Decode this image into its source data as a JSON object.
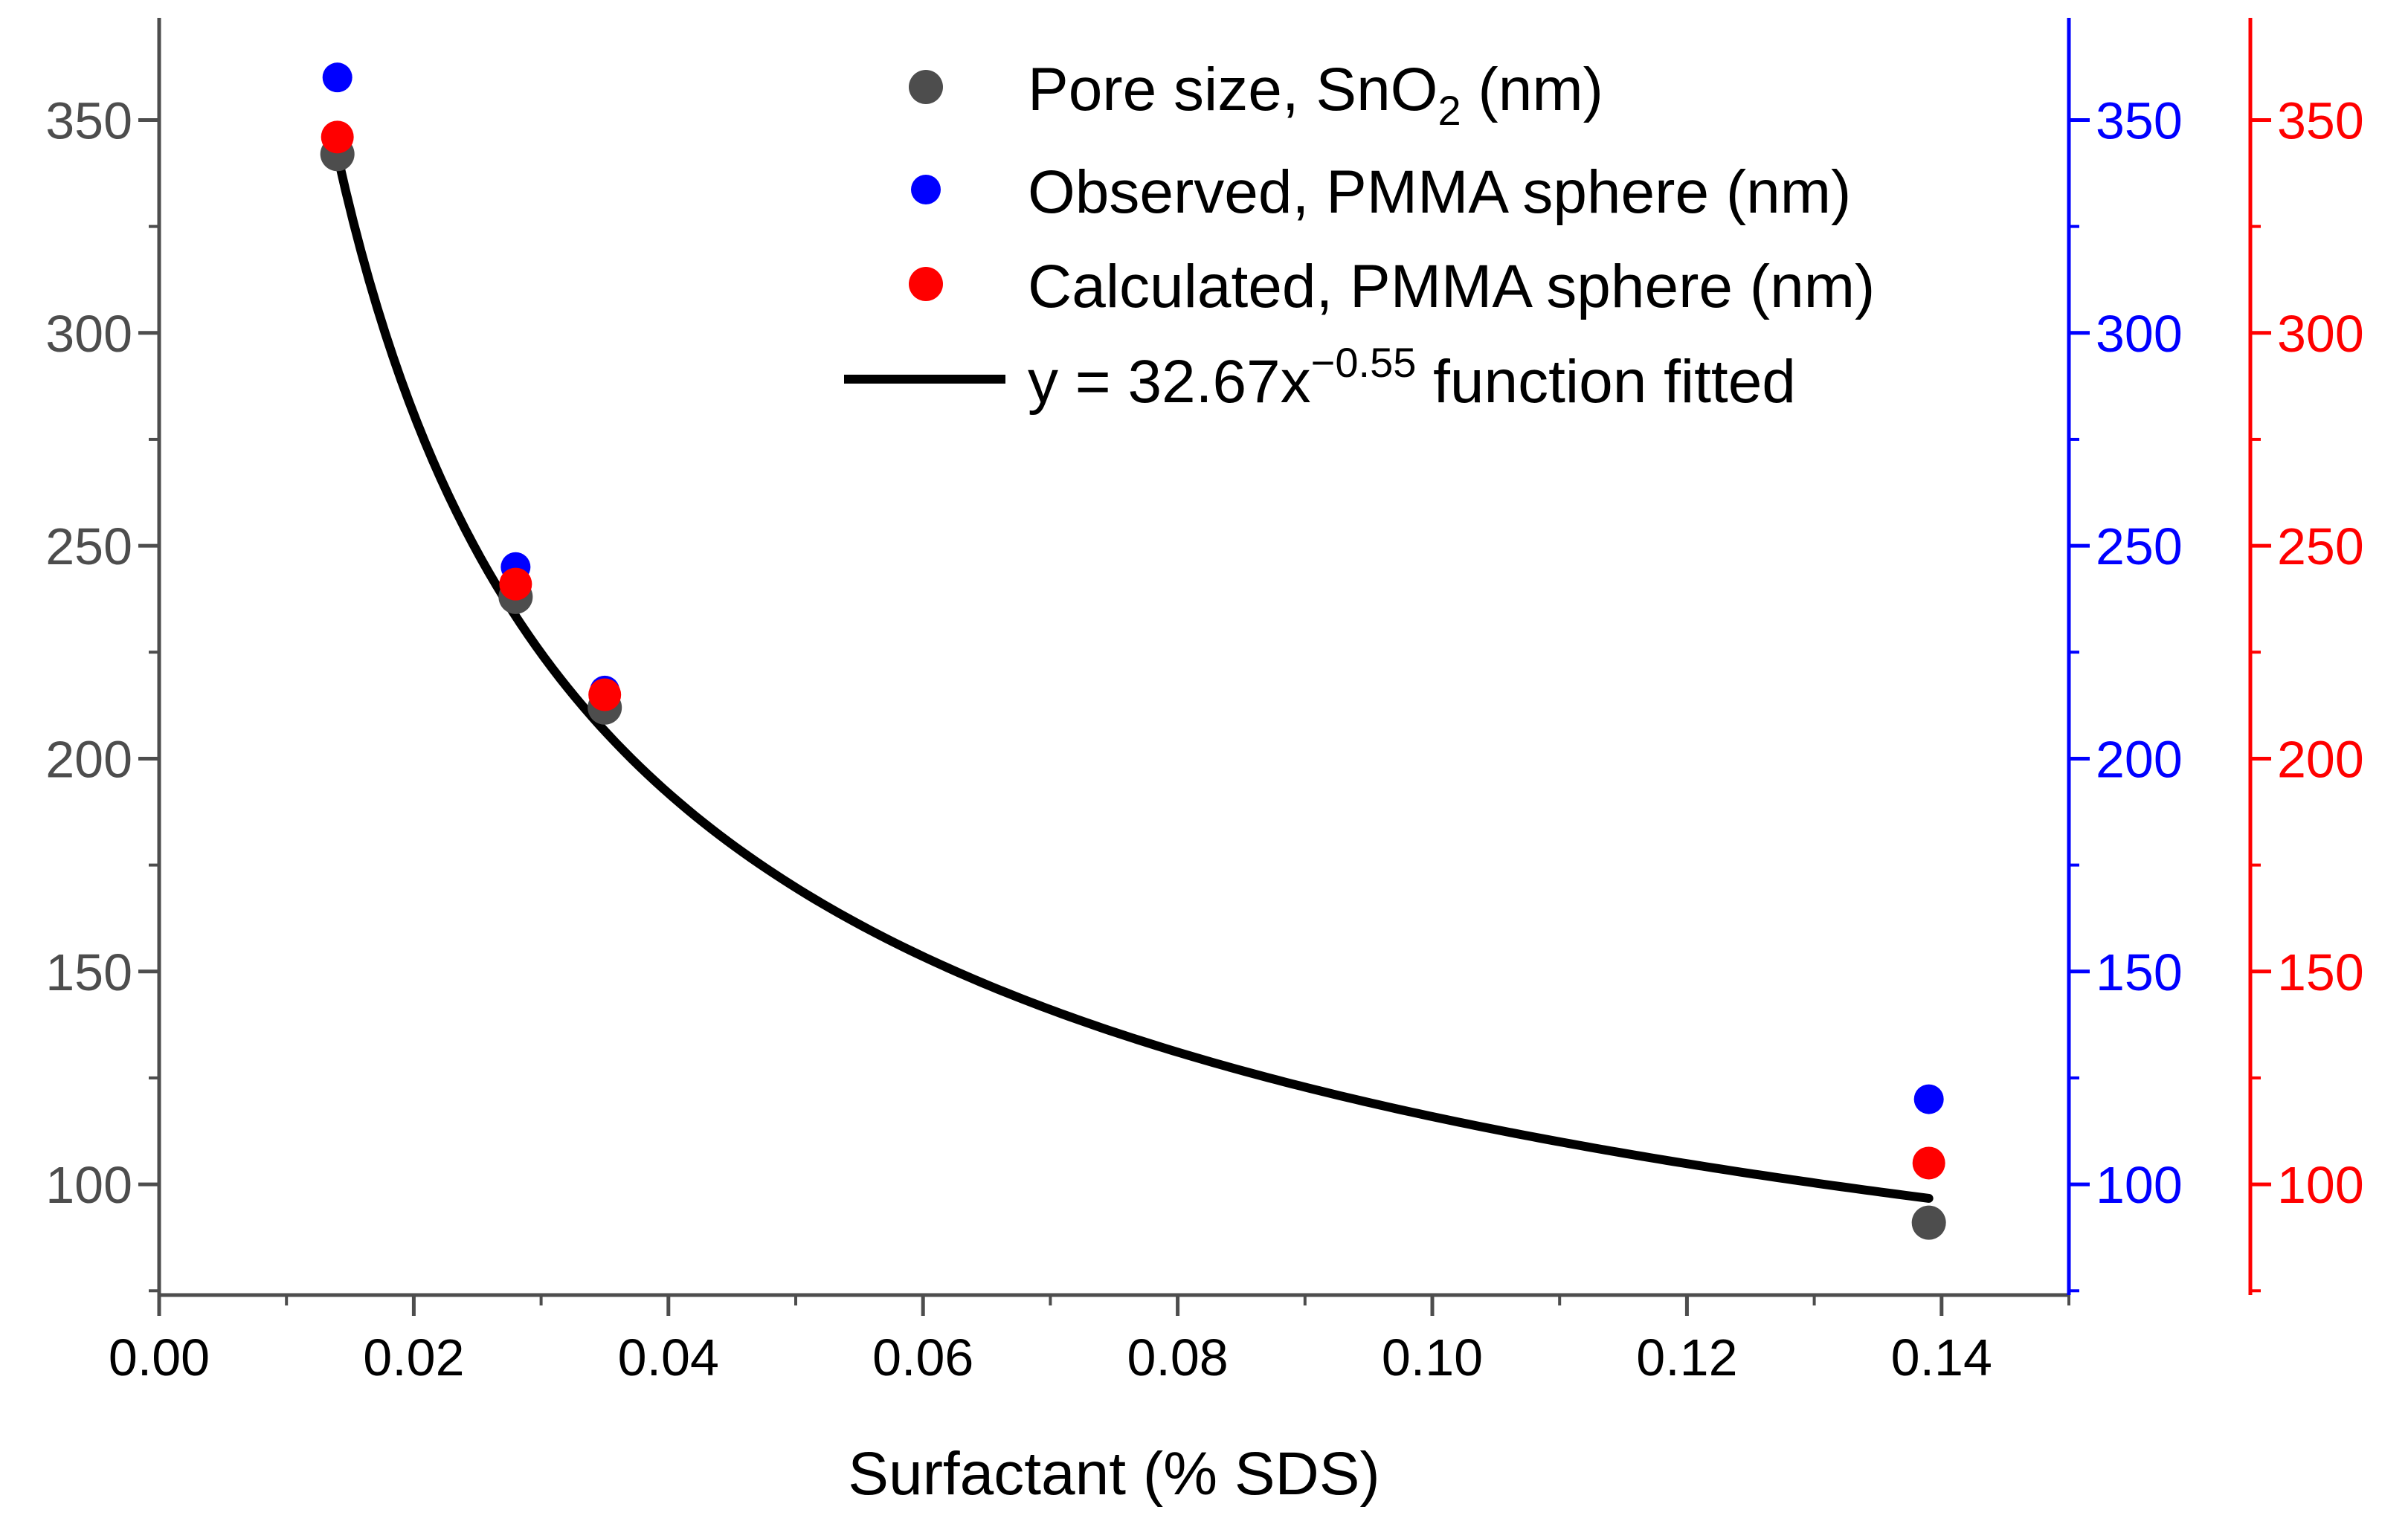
{
  "chart_data": {
    "type": "scatter",
    "xlabel": "Surfactant (% SDS)",
    "xlim": [
      0.0,
      0.15
    ],
    "xticks": [
      "0.00",
      "0.02",
      "0.04",
      "0.06",
      "0.08",
      "0.10",
      "0.12",
      "0.14"
    ],
    "xtick_values": [
      0.0,
      0.02,
      0.04,
      0.06,
      0.08,
      0.1,
      0.12,
      0.14
    ],
    "x_minor_step": 0.01,
    "y_axes": [
      {
        "id": "left",
        "color": "#4d4d4d",
        "ylim": [
          74,
          374
        ],
        "ticks": [
          "100",
          "150",
          "200",
          "250",
          "300",
          "350"
        ],
        "tick_values": [
          100,
          150,
          200,
          250,
          300,
          350
        ],
        "minor_step": 25
      },
      {
        "id": "right1",
        "color": "#0000ff",
        "ylim": [
          74,
          374
        ],
        "ticks": [
          "100",
          "150",
          "200",
          "250",
          "300",
          "350"
        ],
        "tick_values": [
          100,
          150,
          200,
          250,
          300,
          350
        ],
        "minor_step": 25
      },
      {
        "id": "right2",
        "color": "#ff0000",
        "ylim": [
          74,
          374
        ],
        "ticks": [
          "100",
          "150",
          "200",
          "250",
          "300",
          "350"
        ],
        "tick_values": [
          100,
          150,
          200,
          250,
          300,
          350
        ],
        "minor_step": 25
      }
    ],
    "series": [
      {
        "name": "Pore size, SnO2 (nm)",
        "color": "#4d4d4d",
        "kind": "points",
        "axis": "left",
        "x": [
          0.014,
          0.028,
          0.035,
          0.139
        ],
        "y": [
          342,
          238,
          212,
          91
        ]
      },
      {
        "name": "Observed, PMMA sphere (nm)",
        "color": "#0000ff",
        "kind": "points",
        "axis": "right1",
        "x": [
          0.014,
          0.028,
          0.035,
          0.139
        ],
        "y": [
          360,
          245,
          216,
          120
        ]
      },
      {
        "name": "Calculated, PMMA sphere (nm)",
        "color": "#ff0000",
        "kind": "points",
        "axis": "right2",
        "x": [
          0.014,
          0.028,
          0.035,
          0.139
        ],
        "y": [
          346,
          241,
          215,
          105
        ]
      },
      {
        "name": "y = 32.67x^-0.55 function fitted",
        "color": "#000000",
        "kind": "fit",
        "a": 32.67,
        "b": -0.55,
        "x_range": [
          0.014,
          0.139
        ]
      }
    ],
    "legend": {
      "position": "top-right",
      "items": [
        {
          "main": "Pore size, SnO",
          "sub": "2",
          "tail": " (nm)",
          "color": "#4d4d4d",
          "kind": "point"
        },
        {
          "main": "Observed, PMMA sphere (nm)",
          "sub": "",
          "tail": "",
          "color": "#0000ff",
          "kind": "point"
        },
        {
          "main": "Calculated, PMMA sphere (nm)",
          "sub": "",
          "tail": "",
          "color": "#ff0000",
          "kind": "point"
        },
        {
          "main": "y = 32.67x",
          "sup": "−0.55",
          "tail": " function fitted",
          "color": "#000000",
          "kind": "line"
        }
      ]
    }
  }
}
